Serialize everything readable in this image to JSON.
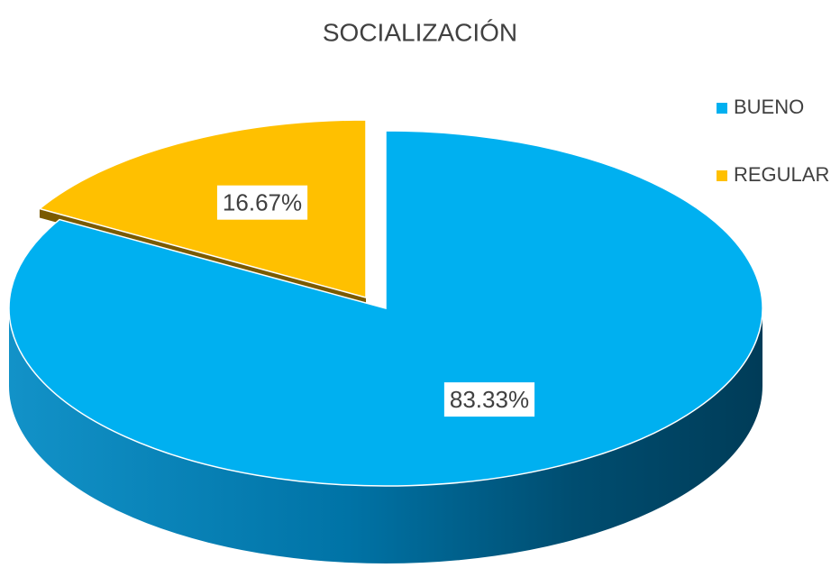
{
  "chart_data": {
    "type": "pie",
    "title": "SOCIALIZACIÓN",
    "categories": [
      "BUENO",
      "REGULAR"
    ],
    "values": [
      83.33,
      16.67
    ],
    "value_labels": [
      "83.33%",
      "16.67%"
    ],
    "colors": [
      "#00b0f0",
      "#ffc000"
    ],
    "legend": "right"
  }
}
